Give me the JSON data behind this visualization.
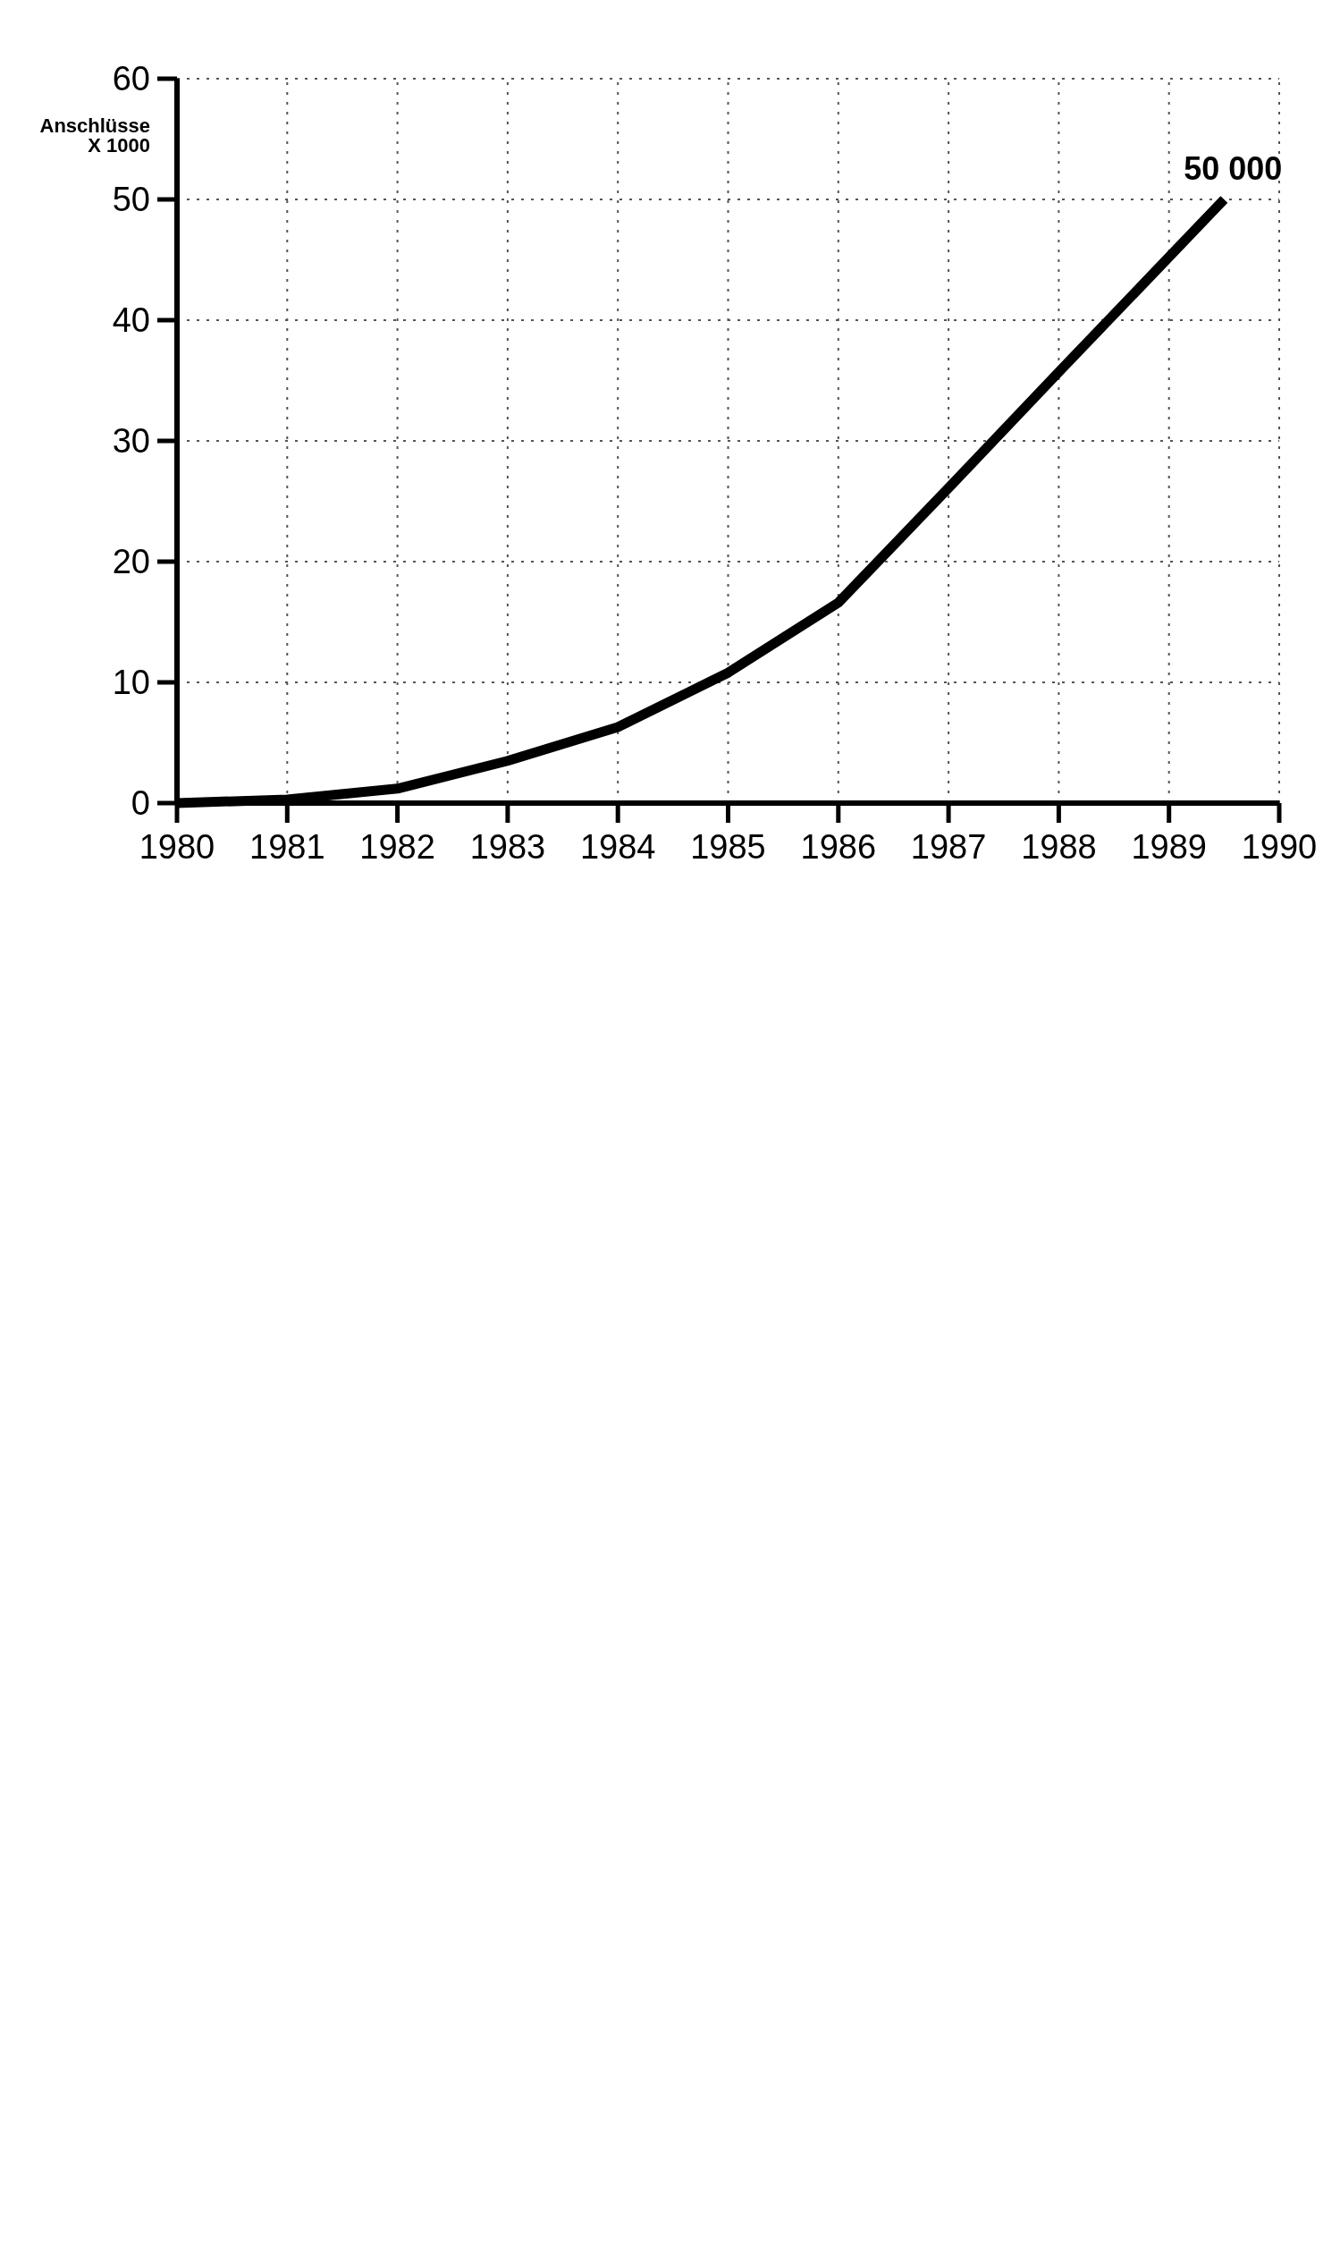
{
  "chart_data": {
    "type": "line",
    "ylabel": "Anschlüsse\nX 1000",
    "x": [
      1980,
      1981,
      1982,
      1983,
      1984,
      1985,
      1986,
      1987,
      1988,
      1989.5
    ],
    "series": [
      {
        "color": "#000000",
        "values": [
          0,
          0.3,
          1.2,
          3.5,
          6.3,
          10.8,
          16.6,
          26.1,
          35.7,
          50
        ]
      }
    ],
    "xlim": [
      1980,
      1990
    ],
    "xticks": [
      1980,
      1981,
      1982,
      1983,
      1984,
      1985,
      1986,
      1987,
      1988,
      1989,
      1990
    ],
    "ylim": [
      0,
      60
    ],
    "yticks": [
      0,
      10,
      20,
      30,
      40,
      50,
      60
    ],
    "grid": true,
    "line_style": "solid",
    "marker": "none",
    "annotations": [
      {
        "text": "50 000",
        "x": 1989.5,
        "y": 50
      }
    ]
  }
}
